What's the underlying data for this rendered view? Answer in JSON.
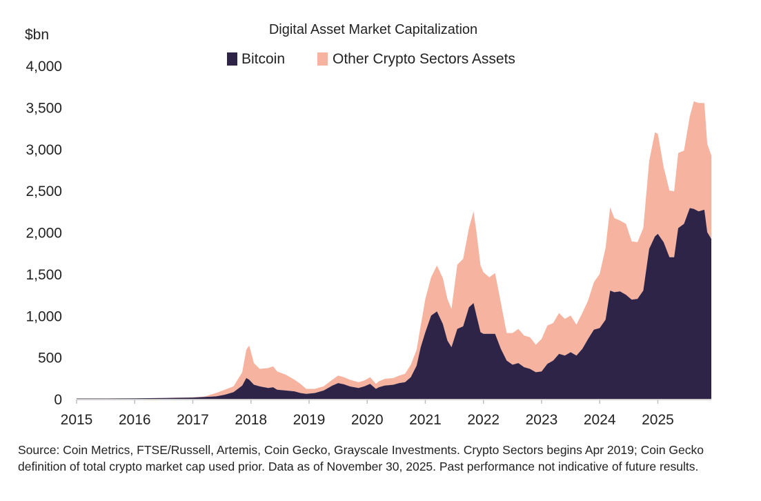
{
  "chart_data": {
    "type": "area",
    "stacked": true,
    "title": "Digital Asset Market Capitalization",
    "ylabel": "$bn",
    "ylim": [
      0,
      4000
    ],
    "yticks": [
      0,
      500,
      1000,
      1500,
      2000,
      2500,
      3000,
      3500,
      4000
    ],
    "ytick_labels": [
      "0",
      "500",
      "1,000",
      "1,500",
      "2,000",
      "2,500",
      "3,000",
      "3,500",
      "4,000"
    ],
    "xlim": [
      2015.0,
      2025.92
    ],
    "xticks": [
      2015,
      2016,
      2017,
      2018,
      2019,
      2020,
      2021,
      2022,
      2023,
      2024,
      2025
    ],
    "xtick_labels": [
      "2015",
      "2016",
      "2017",
      "2018",
      "2019",
      "2020",
      "2021",
      "2022",
      "2023",
      "2024",
      "2025"
    ],
    "grid": false,
    "legend": "top-center",
    "colors": {
      "bitcoin": "#2e2448",
      "other": "#f6b3a0"
    },
    "x": [
      2015.0,
      2015.5,
      2016.0,
      2016.5,
      2017.0,
      2017.2,
      2017.4,
      2017.55,
      2017.7,
      2017.85,
      2017.92,
      2017.97,
      2018.05,
      2018.15,
      2018.3,
      2018.38,
      2018.45,
      2018.6,
      2018.75,
      2018.85,
      2018.95,
      2019.1,
      2019.25,
      2019.4,
      2019.5,
      2019.6,
      2019.7,
      2019.85,
      2019.95,
      2020.05,
      2020.15,
      2020.2,
      2020.3,
      2020.45,
      2020.55,
      2020.65,
      2020.75,
      2020.85,
      2020.92,
      2021.0,
      2021.1,
      2021.2,
      2021.3,
      2021.38,
      2021.45,
      2021.55,
      2021.65,
      2021.75,
      2021.83,
      2021.88,
      2021.95,
      2022.0,
      2022.1,
      2022.2,
      2022.3,
      2022.4,
      2022.5,
      2022.6,
      2022.7,
      2022.8,
      2022.9,
      2023.0,
      2023.1,
      2023.2,
      2023.3,
      2023.4,
      2023.5,
      2023.6,
      2023.7,
      2023.8,
      2023.9,
      2024.0,
      2024.1,
      2024.18,
      2024.25,
      2024.35,
      2024.45,
      2024.55,
      2024.65,
      2024.75,
      2024.85,
      2024.95,
      2025.0,
      2025.1,
      2025.2,
      2025.28,
      2025.35,
      2025.45,
      2025.55,
      2025.62,
      2025.7,
      2025.8,
      2025.85,
      2025.92
    ],
    "series": [
      {
        "name": "Bitcoin",
        "values": [
          4,
          4,
          6,
          10,
          16,
          22,
          30,
          50,
          80,
          160,
          250,
          230,
          170,
          150,
          130,
          140,
          110,
          100,
          90,
          70,
          60,
          70,
          100,
          160,
          190,
          175,
          150,
          130,
          150,
          180,
          120,
          140,
          160,
          170,
          190,
          200,
          260,
          400,
          620,
          800,
          1000,
          1050,
          900,
          700,
          620,
          840,
          870,
          1100,
          1150,
          1000,
          800,
          780,
          780,
          780,
          600,
          460,
          410,
          430,
          380,
          360,
          320,
          330,
          420,
          460,
          540,
          520,
          560,
          520,
          600,
          720,
          830,
          850,
          950,
          1300,
          1280,
          1290,
          1250,
          1190,
          1200,
          1300,
          1800,
          1950,
          1980,
          1880,
          1700,
          1700,
          2050,
          2100,
          2290,
          2280,
          2250,
          2270,
          2000,
          1920
        ]
      },
      {
        "name": "Other Crypto Sectors Assets",
        "values": [
          1,
          1,
          1,
          2,
          4,
          6,
          40,
          60,
          70,
          160,
          340,
          410,
          260,
          210,
          240,
          250,
          220,
          190,
          140,
          110,
          60,
          50,
          50,
          70,
          90,
          85,
          80,
          70,
          70,
          80,
          60,
          70,
          80,
          80,
          90,
          100,
          150,
          190,
          260,
          400,
          460,
          550,
          550,
          500,
          460,
          770,
          810,
          950,
          1100,
          1000,
          800,
          740,
          680,
          730,
          550,
          330,
          380,
          410,
          380,
          380,
          330,
          390,
          460,
          450,
          490,
          440,
          440,
          370,
          430,
          460,
          570,
          650,
          860,
          1000,
          890,
          850,
          850,
          700,
          680,
          750,
          1050,
          1250,
          1200,
          900,
          800,
          790,
          900,
          880,
          1100,
          1290,
          1300,
          1280,
          1060,
          1000
        ]
      }
    ]
  },
  "source_text": "Source: Coin Metrics, FTSE/Russell, Artemis, Coin Gecko, Grayscale Investments. Crypto Sectors begins Apr 2019; Coin Gecko definition of total crypto market cap used prior. Data as of November 30, 2025. Past performance not indicative of future results."
}
